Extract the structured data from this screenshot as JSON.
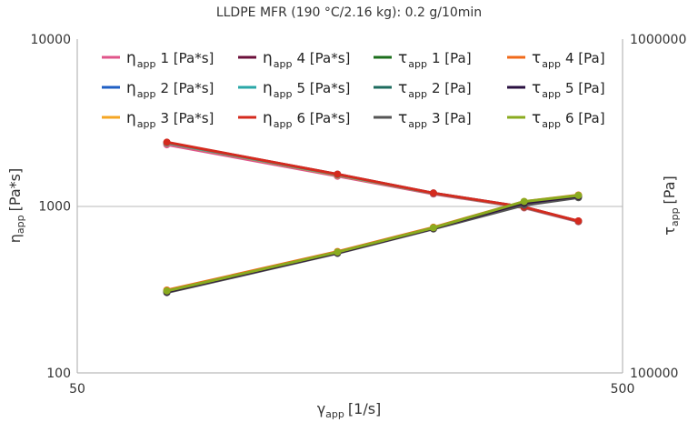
{
  "chart_data": {
    "type": "line",
    "title": "LLDPE MFR (190 °C/2.16 kg): 0.2 g/10min",
    "x_scale": "log",
    "y_scale": "log",
    "y2_scale": "log",
    "xlim": [
      50,
      500
    ],
    "ylim": [
      100,
      10000
    ],
    "y2lim": [
      100000,
      1000000
    ],
    "x_ticks": [
      "50",
      "500"
    ],
    "y_ticks": [
      "100",
      "1000",
      "10000"
    ],
    "y2_ticks": [
      "100000",
      "1000000"
    ],
    "xlabel": {
      "sym": "γ",
      "sub": "app",
      "unit": "[1/s]"
    },
    "ylabel": {
      "sym": "η",
      "sub": "app",
      "unit": "[Pa*s]"
    },
    "y2label": {
      "sym": "τ",
      "sub": "app",
      "unit": "[Pa]"
    },
    "grid": "horizontal line at 1000 only",
    "legend_position": "top",
    "x": [
      73,
      150,
      225,
      330,
      415
    ],
    "series": [
      {
        "name": "η_app 1 [Pa*s]",
        "sym": "η",
        "sub": "app",
        "idx": "1",
        "unit": "[Pa*s]",
        "axis": "left",
        "color": "#e0558a",
        "values": [
          2330,
          1510,
          1180,
          975,
          805
        ]
      },
      {
        "name": "η_app 2 [Pa*s]",
        "sym": "η",
        "sub": "app",
        "idx": "2",
        "unit": "[Pa*s]",
        "axis": "left",
        "color": "#1f5fc4",
        "values": [
          2380,
          1530,
          1190,
          980,
          810
        ]
      },
      {
        "name": "η_app 3 [Pa*s]",
        "sym": "η",
        "sub": "app",
        "idx": "3",
        "unit": "[Pa*s]",
        "axis": "left",
        "color": "#f5a623",
        "values": [
          2380,
          1530,
          1190,
          980,
          810
        ]
      },
      {
        "name": "η_app 4 [Pa*s]",
        "sym": "η",
        "sub": "app",
        "idx": "4",
        "unit": "[Pa*s]",
        "axis": "left",
        "color": "#6b0f3a",
        "values": [
          2400,
          1550,
          1195,
          985,
          812
        ]
      },
      {
        "name": "η_app 5 [Pa*s]",
        "sym": "η",
        "sub": "app",
        "idx": "5",
        "unit": "[Pa*s]",
        "axis": "left",
        "color": "#2aa7a7",
        "values": [
          2390,
          1540,
          1192,
          982,
          810
        ]
      },
      {
        "name": "η_app 6 [Pa*s]",
        "sym": "η",
        "sub": "app",
        "idx": "6",
        "unit": "[Pa*s]",
        "axis": "left",
        "color": "#d42a1e",
        "values": [
          2410,
          1550,
          1195,
          985,
          813
        ]
      },
      {
        "name": "τ_app 1 [Pa]",
        "sym": "τ",
        "sub": "app",
        "idx": "1",
        "unit": "[Pa]",
        "axis": "right",
        "color": "#1b6e1b",
        "values": [
          175000,
          229000,
          271000,
          323000,
          338000
        ]
      },
      {
        "name": "τ_app 2 [Pa]",
        "sym": "τ",
        "sub": "app",
        "idx": "2",
        "unit": "[Pa]",
        "axis": "right",
        "color": "#1d6b5e",
        "values": [
          176000,
          230000,
          272000,
          324000,
          340000
        ]
      },
      {
        "name": "τ_app 3 [Pa]",
        "sym": "τ",
        "sub": "app",
        "idx": "3",
        "unit": "[Pa]",
        "axis": "right",
        "color": "#555555",
        "values": [
          174000,
          228000,
          270000,
          318000,
          335000
        ]
      },
      {
        "name": "τ_app 4 [Pa]",
        "sym": "τ",
        "sub": "app",
        "idx": "4",
        "unit": "[Pa]",
        "axis": "right",
        "color": "#f06a1a",
        "values": [
          177000,
          231000,
          273000,
          326000,
          341000
        ]
      },
      {
        "name": "τ_app 5 [Pa]",
        "sym": "τ",
        "sub": "app",
        "idx": "5",
        "unit": "[Pa]",
        "axis": "right",
        "color": "#2a1040",
        "values": [
          175000,
          229000,
          271000,
          323000,
          338000
        ]
      },
      {
        "name": "τ_app 6 [Pa]",
        "sym": "τ",
        "sub": "app",
        "idx": "6",
        "unit": "[Pa]",
        "axis": "right",
        "color": "#8aab1f",
        "values": [
          176000,
          230000,
          272000,
          326000,
          340000
        ]
      }
    ]
  }
}
